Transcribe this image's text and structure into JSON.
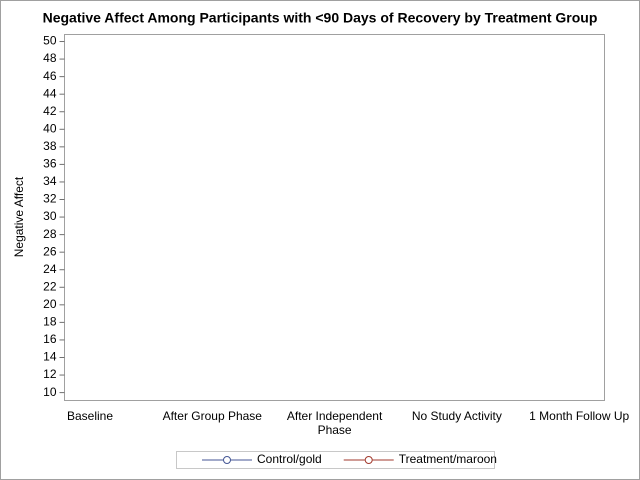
{
  "chart_data": {
    "type": "line",
    "title": "Negative Affect Among Participants with <90 Days of Recovery by Treatment Group",
    "y_label": "Negative Affect",
    "categories": [
      "Baseline",
      "After Group Phase",
      "After Independent Phase",
      "No Study Activity",
      "1 Month Follow Up"
    ],
    "series": [
      {
        "name": "Control/gold",
        "color": "#445694",
        "values": [
          null,
          null,
          null,
          null,
          null
        ]
      },
      {
        "name": "Treatment/maroon",
        "color": "#a23a2e",
        "values": [
          null,
          null,
          null,
          null,
          null
        ]
      }
    ],
    "ylim": [
      9.1,
      50.8
    ],
    "yticks": [
      10,
      12,
      14,
      16,
      18,
      20,
      22,
      24,
      26,
      28,
      30,
      32,
      34,
      36,
      38,
      40,
      42,
      44,
      46,
      48,
      50
    ],
    "grid": false,
    "legend": "bottom"
  }
}
